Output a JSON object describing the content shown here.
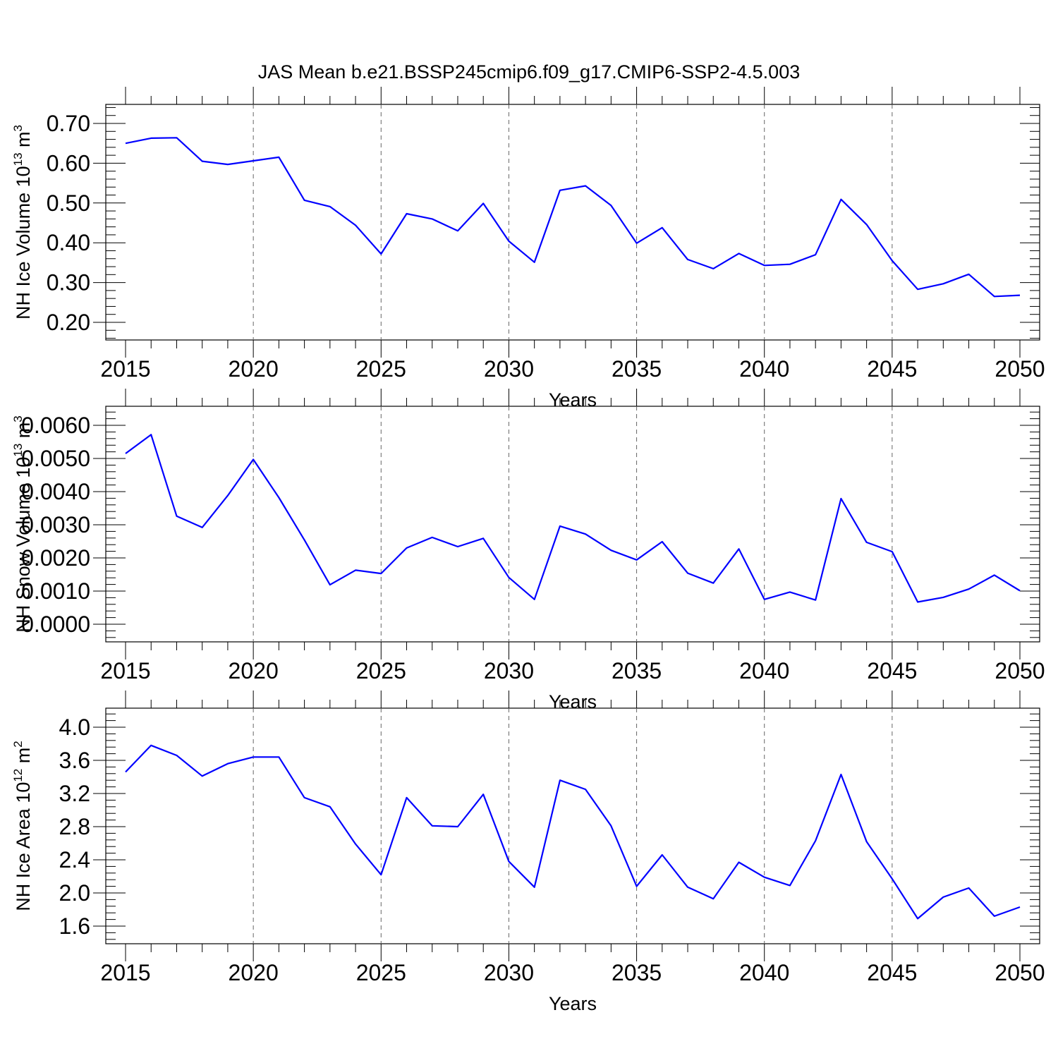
{
  "figure": {
    "title": "JAS Mean b.e21.BSSP245cmip6.f09_g17.CMIP6-SSP2-4.5.003"
  },
  "chart_data": [
    {
      "type": "line",
      "xlabel": "Years",
      "ylabel": "NH Ice Volume 10",
      "ylabel_sup": "13",
      "ylabel_unit": " m",
      "ylabel_unit_sup": "3",
      "xlim": [
        2015,
        2050
      ],
      "ylim": [
        0.2,
        0.7
      ],
      "xticks": [
        2015,
        2020,
        2025,
        2030,
        2035,
        2040,
        2045,
        2050
      ],
      "yticks": [
        "0.20",
        "0.30",
        "0.40",
        "0.50",
        "0.60",
        "0.70"
      ],
      "grid": "dashed vertical at major x ticks",
      "color": "#0000ff",
      "x": [
        2015,
        2016,
        2017,
        2018,
        2019,
        2020,
        2021,
        2022,
        2023,
        2024,
        2025,
        2026,
        2027,
        2028,
        2029,
        2030,
        2031,
        2032,
        2033,
        2034,
        2035,
        2036,
        2037,
        2038,
        2039,
        2040,
        2041,
        2042,
        2043,
        2044,
        2045,
        2046,
        2047,
        2048,
        2049,
        2050
      ],
      "values": [
        0.65,
        0.663,
        0.664,
        0.605,
        0.597,
        0.606,
        0.615,
        0.507,
        0.491,
        0.444,
        0.372,
        0.473,
        0.46,
        0.43,
        0.499,
        0.404,
        0.351,
        0.532,
        0.543,
        0.494,
        0.399,
        0.438,
        0.358,
        0.335,
        0.373,
        0.343,
        0.346,
        0.37,
        0.509,
        0.446,
        0.355,
        0.283,
        0.297,
        0.321,
        0.265,
        0.268
      ]
    },
    {
      "type": "line",
      "xlabel": "Years",
      "ylabel": "NH Snow Volume 10",
      "ylabel_sup": "13",
      "ylabel_unit": " m",
      "ylabel_unit_sup": "3",
      "xlim": [
        2015,
        2050
      ],
      "ylim": [
        0.0,
        0.006
      ],
      "xticks": [
        2015,
        2020,
        2025,
        2030,
        2035,
        2040,
        2045,
        2050
      ],
      "yticks": [
        "0.0000",
        "0.0010",
        "0.0020",
        "0.0030",
        "0.0040",
        "0.0050",
        "0.0060"
      ],
      "grid": "dashed vertical at major x ticks",
      "color": "#0000ff",
      "x": [
        2015,
        2016,
        2017,
        2018,
        2019,
        2020,
        2021,
        2022,
        2023,
        2024,
        2025,
        2026,
        2027,
        2028,
        2029,
        2030,
        2031,
        2032,
        2033,
        2034,
        2035,
        2036,
        2037,
        2038,
        2039,
        2040,
        2041,
        2042,
        2043,
        2044,
        2045,
        2046,
        2047,
        2048,
        2049,
        2050
      ],
      "values": [
        0.00515,
        0.00572,
        0.00326,
        0.00292,
        0.00388,
        0.00497,
        0.00382,
        0.00254,
        0.00119,
        0.00163,
        0.00153,
        0.0023,
        0.00262,
        0.00234,
        0.00259,
        0.00141,
        0.00075,
        0.00296,
        0.00272,
        0.00223,
        0.00194,
        0.00249,
        0.00154,
        0.00124,
        0.00227,
        0.00075,
        0.00097,
        0.00073,
        0.00379,
        0.00247,
        0.00219,
        0.00067,
        0.00081,
        0.00106,
        0.00148,
        0.00101
      ]
    },
    {
      "type": "line",
      "xlabel": "Years",
      "ylabel": "NH Ice Area 10",
      "ylabel_sup": "12",
      "ylabel_unit": " m",
      "ylabel_unit_sup": "2",
      "xlim": [
        2015,
        2050
      ],
      "ylim": [
        1.6,
        4.0
      ],
      "xticks": [
        2015,
        2020,
        2025,
        2030,
        2035,
        2040,
        2045,
        2050
      ],
      "yticks": [
        "1.6",
        "2.0",
        "2.4",
        "2.8",
        "3.2",
        "3.6",
        "4.0"
      ],
      "grid": "dashed vertical at major x ticks",
      "color": "#0000ff",
      "x": [
        2015,
        2016,
        2017,
        2018,
        2019,
        2020,
        2021,
        2022,
        2023,
        2024,
        2025,
        2026,
        2027,
        2028,
        2029,
        2030,
        2031,
        2032,
        2033,
        2034,
        2035,
        2036,
        2037,
        2038,
        2039,
        2040,
        2041,
        2042,
        2043,
        2044,
        2045,
        2046,
        2047,
        2048,
        2049,
        2050
      ],
      "values": [
        3.46,
        3.78,
        3.66,
        3.41,
        3.56,
        3.64,
        3.64,
        3.15,
        3.04,
        2.59,
        2.22,
        3.15,
        2.81,
        2.8,
        3.19,
        2.38,
        2.07,
        3.36,
        3.25,
        2.81,
        2.08,
        2.46,
        2.07,
        1.93,
        2.37,
        2.19,
        2.09,
        2.63,
        3.43,
        2.62,
        2.17,
        1.69,
        1.95,
        2.06,
        1.72,
        1.83
      ]
    }
  ]
}
